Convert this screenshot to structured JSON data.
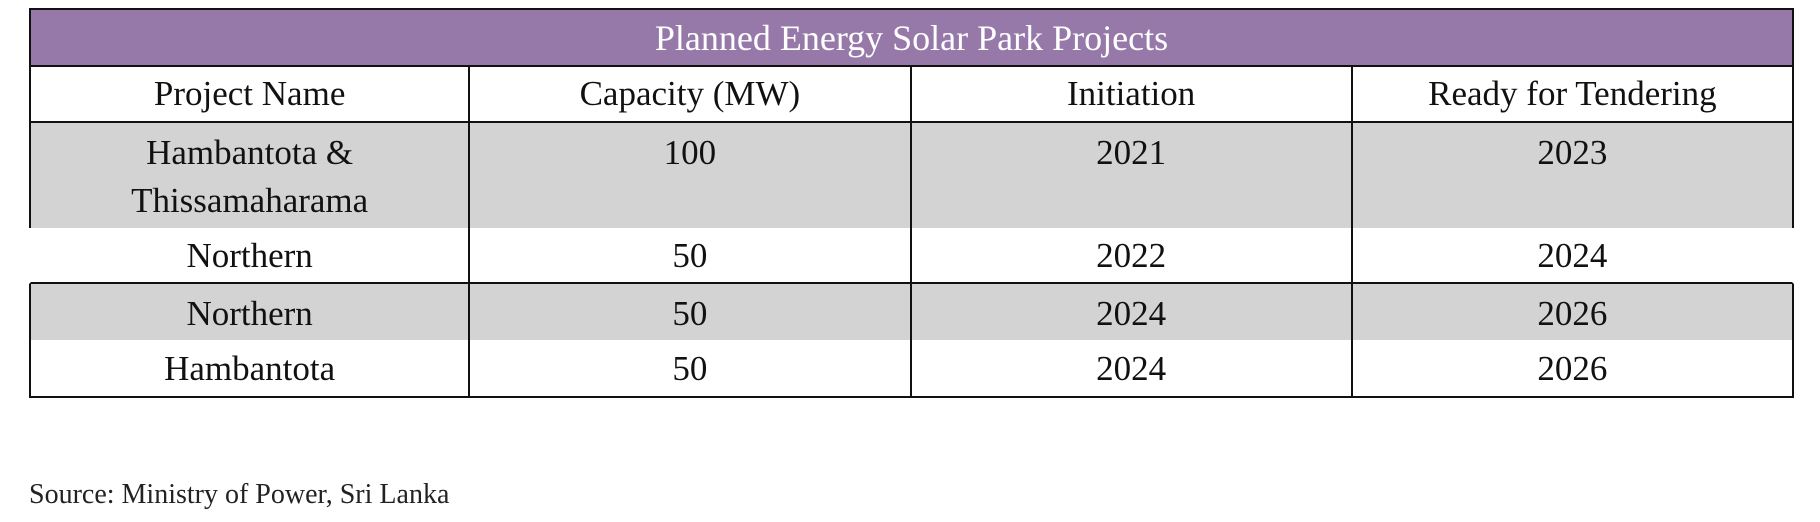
{
  "table": {
    "title": "Planned Energy Solar Park Projects",
    "headers": [
      "Project Name",
      "Capacity (MW)",
      "Initiation",
      "Ready for Tendering"
    ],
    "rows": [
      [
        "Hambantota & Thissamaharama",
        "100",
        "2021",
        "2023"
      ],
      [
        "Northern",
        "50",
        "2022",
        "2024"
      ],
      [
        "Northern",
        "50",
        "2024",
        "2026"
      ],
      [
        "Hambantota",
        "50",
        "2024",
        "2026"
      ]
    ],
    "title_bar_color": "#9679a9",
    "shaded_row_color": "#d3d3d3"
  },
  "source": "Source: Ministry of Power, Sri Lanka"
}
